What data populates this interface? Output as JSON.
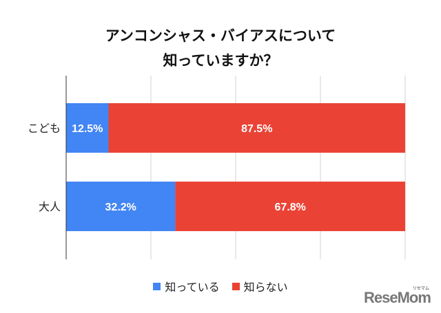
{
  "chart_data": {
    "type": "bar",
    "orientation": "horizontal",
    "stacked": true,
    "title": [
      "アンコンシャス・バイアスについて",
      "知っていますか？"
    ],
    "categories": [
      "こども",
      "大人"
    ],
    "series": [
      {
        "name": "知っている",
        "values": [
          12.5,
          32.2
        ],
        "labels": [
          "12.5%",
          "32.2%"
        ],
        "color": "#4285f4"
      },
      {
        "name": "知らない",
        "values": [
          87.5,
          67.8
        ],
        "labels": [
          "87.5%",
          "67.8%"
        ],
        "color": "#ea4335"
      }
    ],
    "xlim": [
      0,
      100
    ],
    "grid": true,
    "legend_position": "bottom"
  },
  "watermark": "ReseMom",
  "watermark_sub": "リセマム"
}
